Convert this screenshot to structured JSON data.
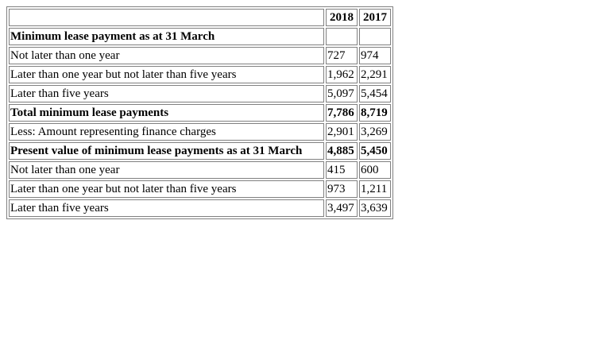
{
  "table": {
    "columns": [
      "",
      "2018",
      "2017"
    ],
    "rows": [
      {
        "label": "Minimum lease payment as at 31 March",
        "v2018": "",
        "v2017": "",
        "bold": true
      },
      {
        "label": "Not later than one year",
        "v2018": "727",
        "v2017": "974",
        "bold": false
      },
      {
        "label": "Later than one year but not later than five years",
        "v2018": "1,962",
        "v2017": "2,291",
        "bold": false
      },
      {
        "label": "Later than five years",
        "v2018": "5,097",
        "v2017": "5,454",
        "bold": false
      },
      {
        "label": "Total minimum lease payments",
        "v2018": "7,786",
        "v2017": "8,719",
        "bold": true
      },
      {
        "label": "Less: Amount representing finance charges",
        "v2018": "2,901",
        "v2017": "3,269",
        "bold": false
      },
      {
        "label": "Present value of minimum lease payments as at 31 March",
        "v2018": "4,885",
        "v2017": "5,450",
        "bold": true
      },
      {
        "label": "Not later than one year",
        "v2018": "415",
        "v2017": "600",
        "bold": false
      },
      {
        "label": "Later than one year but not later than five years",
        "v2018": "973",
        "v2017": "1,211",
        "bold": false
      },
      {
        "label": "Later than five years",
        "v2018": "3,497",
        "v2017": "3,639",
        "bold": false
      }
    ]
  }
}
